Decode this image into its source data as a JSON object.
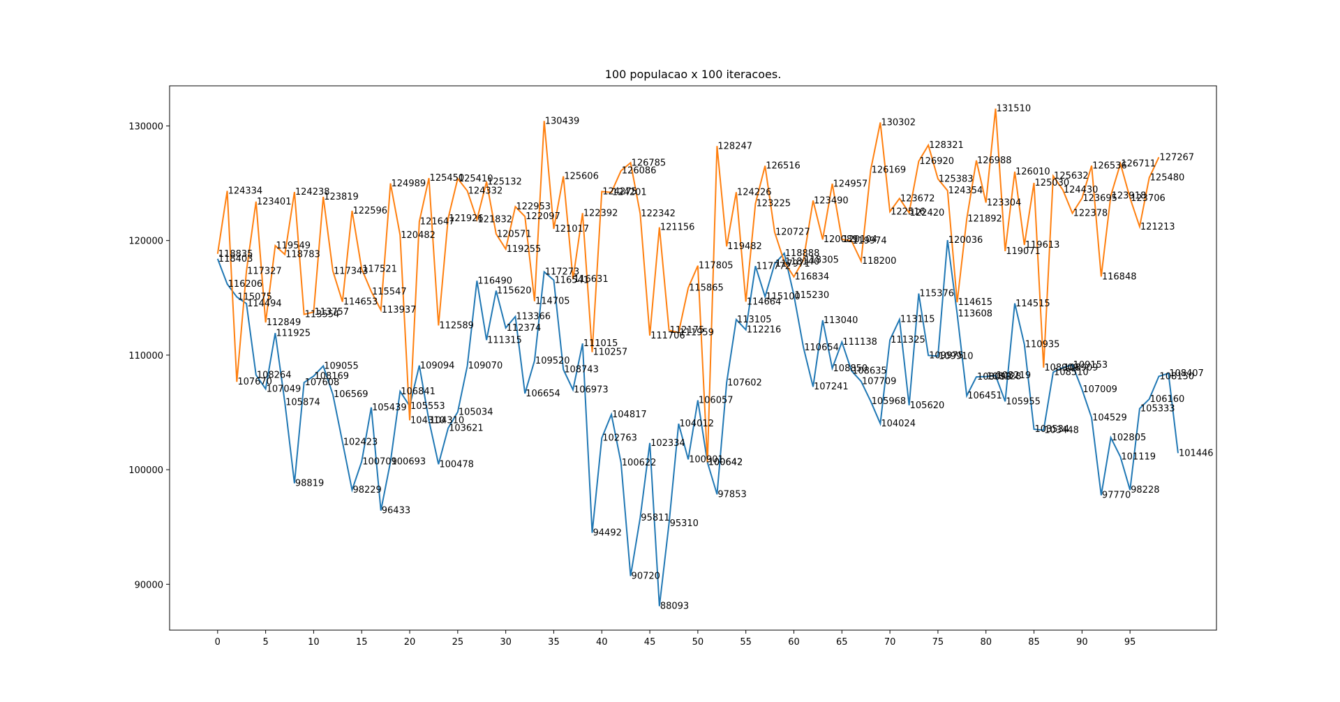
{
  "chart_data": {
    "type": "line",
    "title": "100 populacao x 100 iteracoes.",
    "xlabel": "",
    "ylabel": "",
    "xlim": [
      -5,
      104
    ],
    "ylim": [
      86000,
      133500
    ],
    "x_ticks": [
      0,
      5,
      10,
      15,
      20,
      25,
      30,
      35,
      40,
      45,
      50,
      55,
      60,
      65,
      70,
      75,
      80,
      85,
      90,
      95
    ],
    "y_ticks": [
      90000,
      100000,
      110000,
      120000,
      130000
    ],
    "grid": false,
    "legend": "none",
    "series": [
      {
        "color": "#1f77b4",
        "values": [
          118403,
          116206,
          115075,
          114494,
          108264,
          107049,
          111925,
          105874,
          98819,
          107608,
          108169,
          109055,
          106569,
          102423,
          98229,
          100709,
          105439,
          96433,
          100693,
          106841,
          105553,
          109094,
          104310,
          100478,
          103621,
          105034,
          109070,
          116490,
          111315,
          115620,
          112374,
          113366,
          106654,
          109520,
          117273,
          116541,
          108743,
          106973,
          111015,
          94492,
          102763,
          104817,
          100622,
          90720,
          95811,
          102334,
          88093,
          95310,
          104012,
          100901,
          106057,
          100642,
          97853,
          107602,
          113105,
          112216,
          117772,
          115100,
          117971,
          118888,
          115230,
          110654,
          107241,
          113040,
          108850,
          111138,
          108635,
          107709,
          105968,
          104024,
          111325,
          113115,
          105620,
          115376,
          109975,
          109910,
          120036,
          113608,
          106451,
          108099,
          108128,
          108219,
          105955,
          114515,
          110935,
          103534,
          103448,
          108510,
          108909,
          109153,
          107009,
          104529,
          97770,
          102805,
          101119,
          98228,
          105333,
          106160,
          108150,
          108407,
          101446
        ]
      },
      {
        "color": "#ff7f0e",
        "values": [
          118835,
          124334,
          107670,
          117327,
          123401,
          112849,
          119549,
          118783,
          124238,
          113554,
          113757,
          123819,
          117343,
          114653,
          122596,
          117521,
          115547,
          113937,
          124989,
          120482,
          104310,
          121647,
          125450,
          112589,
          121926,
          125410,
          124332,
          121832,
          125132,
          120571,
          119255,
          122953,
          122097,
          114705,
          130439,
          121017,
          125606,
          116631,
          122392,
          110257,
          124275,
          124201,
          126086,
          126785,
          122342,
          111706,
          121156,
          112175,
          111959,
          115865,
          117805,
          100642,
          128247,
          119482,
          124226,
          114664,
          123225,
          126516,
          120727,
          118140,
          116834,
          118305,
          123490,
          120089,
          124957,
          120104,
          119974,
          118200,
          126169,
          130302,
          122516,
          123672,
          122420,
          126920,
          128321,
          125383,
          124354,
          114615,
          121892,
          126988,
          123304,
          131510,
          119071,
          126010,
          119613,
          125030,
          108909,
          125632,
          124430,
          122378,
          123695,
          126536,
          116848,
          123918,
          126711,
          123706,
          121213,
          125480,
          127267
        ]
      }
    ],
    "annotations": [
      {
        "series": 0,
        "values": [
          118403,
          116206,
          115075,
          114494,
          108264,
          107049,
          111925,
          105874,
          98819,
          107608,
          108169,
          109055,
          106569,
          102423,
          98229,
          100709,
          105439,
          96433,
          100693,
          106841,
          105553,
          109094,
          104310,
          100478,
          103621,
          105034,
          109070,
          116490,
          111315,
          115620,
          112374,
          113366,
          106654,
          109520,
          117273,
          116541,
          108743,
          106973,
          111015,
          94492,
          102763,
          104817,
          100622,
          90720,
          95811,
          102334,
          88093,
          95310,
          104012,
          100901,
          106057,
          100642,
          97853,
          107602,
          113105,
          112216,
          117772,
          115100,
          117971,
          118888,
          115230,
          110654,
          107241,
          113040,
          108850,
          111138,
          108635,
          107709,
          105968,
          104024,
          111325,
          113115,
          105620,
          115376,
          109975,
          109910,
          120036,
          113608,
          106451,
          108099,
          108128,
          108219,
          105955,
          114515,
          110935,
          103534,
          103448,
          108510,
          108909,
          109153,
          107009,
          104529,
          97770,
          102805,
          101119,
          98228,
          105333,
          106160,
          108150,
          108407,
          101446
        ]
      },
      {
        "series": 1,
        "values": [
          118835,
          124334,
          107670,
          117327,
          123401,
          112849,
          119549,
          118783,
          124238,
          113554,
          113757,
          123819,
          117343,
          114653,
          122596,
          117521,
          115547,
          113937,
          124989,
          120482,
          104310,
          121647,
          125450,
          112589,
          121926,
          125410,
          124332,
          121832,
          125132,
          120571,
          119255,
          122953,
          122097,
          114705,
          130439,
          121017,
          125606,
          116631,
          122392,
          110257,
          124275,
          124201,
          126086,
          126785,
          122342,
          111706,
          121156,
          112175,
          111959,
          115865,
          117805,
          100642,
          128247,
          119482,
          124226,
          114664,
          123225,
          126516,
          120727,
          118140,
          116834,
          118305,
          123490,
          120089,
          124957,
          120104,
          119974,
          118200,
          126169,
          130302,
          122516,
          123672,
          122420,
          126920,
          128321,
          125383,
          124354,
          114615,
          121892,
          126988,
          123304,
          131510,
          119071,
          126010,
          119613,
          125030,
          108909,
          125632,
          124430,
          122378,
          123695,
          126536,
          116848,
          123918,
          126711,
          123706,
          121213,
          125480,
          127267
        ]
      }
    ]
  }
}
